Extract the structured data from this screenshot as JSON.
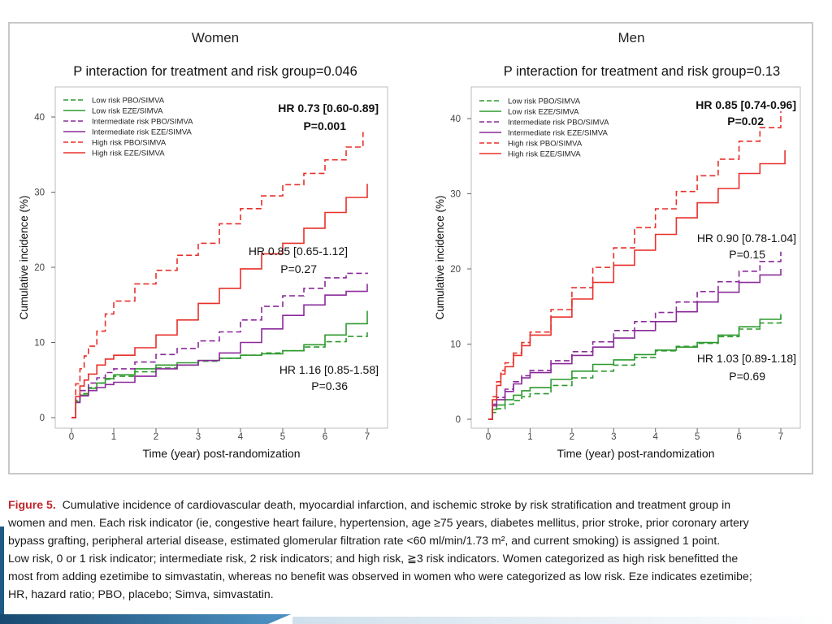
{
  "chart_data": [
    {
      "type": "line",
      "panel_title": "Women",
      "subtitle": "P interaction for treatment and risk group=0.046",
      "xlabel": "Time (year) post-randomization",
      "ylabel": "Cumulative incidence (%)",
      "xlim": [
        0,
        7.3
      ],
      "ylim": [
        0,
        45
      ],
      "x_ticks": [
        "0",
        "1",
        "2",
        "3",
        "4",
        "5",
        "6",
        "7"
      ],
      "y_ticks": [
        "0",
        "10",
        "20",
        "30",
        "40"
      ],
      "legend": [
        "Low risk PBO/SIMVA",
        "Low risk EZE/SIMVA",
        "Intermediate risk PBO/SIMVA",
        "Intermediate risk EZE/SIMVA",
        "High risk PBO/SIMVA",
        "High risk EZE/SIMVA"
      ],
      "annotations": [
        {
          "hr": "HR 0.73 [0.60-0.89]",
          "p": "P=0.001",
          "bold": true
        },
        {
          "hr": "HR 0.85 [0.65-1.12]",
          "p": "P=0.27",
          "bold": false
        },
        {
          "hr": "HR 1.16 [0.85-1.58]",
          "p": "P=0.36",
          "bold": false
        }
      ],
      "series": [
        {
          "name": "Low risk PBO/SIMVA",
          "color": "#2e9a2e",
          "dashed": true,
          "x": [
            0,
            0.1,
            0.2,
            0.4,
            0.6,
            0.8,
            1,
            1.5,
            2,
            2.5,
            3,
            3.5,
            4,
            4.5,
            5,
            5.5,
            6,
            6.5,
            7
          ],
          "y": [
            0,
            2.3,
            3.2,
            4.0,
            4.6,
            5.1,
            5.5,
            6.1,
            6.6,
            7.0,
            7.5,
            7.9,
            8.3,
            8.6,
            8.9,
            9.4,
            10.1,
            10.8,
            11.4
          ]
        },
        {
          "name": "Low risk EZE/SIMVA",
          "color": "#2e9a2e",
          "dashed": false,
          "x": [
            0,
            0.1,
            0.2,
            0.4,
            0.6,
            0.8,
            1,
            1.5,
            2,
            2.5,
            3,
            3.5,
            4,
            4.5,
            5,
            5.5,
            6,
            6.5,
            7
          ],
          "y": [
            0,
            2.1,
            3.0,
            3.9,
            4.6,
            5.2,
            5.7,
            6.5,
            7.0,
            7.3,
            7.6,
            7.9,
            8.3,
            8.5,
            8.9,
            9.7,
            11.0,
            12.5,
            14.2
          ]
        },
        {
          "name": "Intermediate risk PBO/SIMVA",
          "color": "#8a2a9a",
          "dashed": true,
          "x": [
            0,
            0.1,
            0.2,
            0.4,
            0.6,
            0.8,
            1,
            1.5,
            2,
            2.5,
            3,
            3.5,
            4,
            4.5,
            5,
            5.5,
            6,
            6.5,
            7
          ],
          "y": [
            0,
            2.5,
            3.6,
            4.6,
            5.3,
            6.0,
            6.5,
            7.4,
            8.4,
            9.2,
            10.2,
            11.4,
            13.0,
            14.8,
            16.2,
            17.2,
            18.6,
            19.2,
            19.3
          ]
        },
        {
          "name": "Intermediate risk EZE/SIMVA",
          "color": "#8a2a9a",
          "dashed": false,
          "x": [
            0,
            0.1,
            0.2,
            0.4,
            0.6,
            0.8,
            1,
            1.5,
            2,
            2.5,
            3,
            3.5,
            4,
            4.5,
            5,
            5.5,
            6,
            6.5,
            7
          ],
          "y": [
            0,
            2.0,
            2.9,
            3.6,
            4.0,
            4.4,
            4.7,
            5.5,
            6.5,
            7.0,
            7.6,
            8.6,
            10.0,
            11.8,
            13.6,
            15.0,
            16.3,
            16.8,
            17.8
          ]
        },
        {
          "name": "High risk PBO/SIMVA",
          "color": "#e8302a",
          "dashed": true,
          "x": [
            0,
            0.1,
            0.2,
            0.3,
            0.4,
            0.6,
            0.8,
            1,
            1.5,
            2,
            2.5,
            3,
            3.5,
            4,
            4.5,
            5,
            5.5,
            6,
            6.5,
            6.9
          ],
          "y": [
            0,
            4.5,
            6.5,
            8.2,
            9.5,
            11.5,
            13.8,
            15.5,
            17.8,
            19.6,
            21.6,
            23.2,
            25.8,
            27.8,
            29.5,
            31.0,
            32.5,
            34.3,
            36.0,
            38.0
          ]
        },
        {
          "name": "High risk EZE/SIMVA",
          "color": "#e8302a",
          "dashed": false,
          "x": [
            0,
            0.1,
            0.2,
            0.3,
            0.4,
            0.6,
            0.8,
            1,
            1.5,
            2,
            2.5,
            3,
            3.5,
            4,
            4.5,
            5,
            5.5,
            6,
            6.5,
            7
          ],
          "y": [
            0,
            2.8,
            4.2,
            5.0,
            5.8,
            7.0,
            7.8,
            8.3,
            9.3,
            11.0,
            13.0,
            15.2,
            17.2,
            19.8,
            21.8,
            23.2,
            25.2,
            27.3,
            29.3,
            31.1
          ]
        }
      ]
    },
    {
      "type": "line",
      "panel_title": "Men",
      "subtitle": "P interaction for treatment and risk group=0.13",
      "xlabel": "Time (year) post-randomization",
      "ylabel": "Cumulative incidence (%)",
      "xlim": [
        0,
        7.3
      ],
      "ylim": [
        0,
        45
      ],
      "x_ticks": [
        "0",
        "1",
        "2",
        "3",
        "4",
        "5",
        "6",
        "7"
      ],
      "y_ticks": [
        "0",
        "10",
        "20",
        "30",
        "40"
      ],
      "legend": [
        "Low risk PBO/SIMVA",
        "Low risk EZE/SIMVA",
        "Intermediate risk PBO/SIMVA",
        "Intermediate risk EZE/SIMVA",
        "High risk PBO/SIMVA",
        "High risk EZE/SIMVA"
      ],
      "annotations": [
        {
          "hr": "HR 0.85 [0.74-0.96]",
          "p": "P=0.02",
          "bold": true
        },
        {
          "hr": "HR 0.90 [0.78-1.04]",
          "p": "P=0.15",
          "bold": false
        },
        {
          "hr": "HR 1.03 [0.89-1.18]",
          "p": "P=0.69",
          "bold": false
        }
      ],
      "series": [
        {
          "name": "Low risk PBO/SIMVA",
          "color": "#2e9a2e",
          "dashed": true,
          "x": [
            0,
            0.1,
            0.2,
            0.4,
            0.6,
            0.8,
            1,
            1.5,
            2,
            2.5,
            3,
            3.5,
            4,
            4.5,
            5,
            5.5,
            6,
            6.5,
            7
          ],
          "y": [
            0,
            0.9,
            1.4,
            2.0,
            2.5,
            3.0,
            3.4,
            4.5,
            5.5,
            6.4,
            7.2,
            8.2,
            9.1,
            9.7,
            10.1,
            11.0,
            12.0,
            12.8,
            13.7
          ]
        },
        {
          "name": "Low risk EZE/SIMVA",
          "color": "#2e9a2e",
          "dashed": false,
          "x": [
            0,
            0.1,
            0.2,
            0.4,
            0.6,
            0.8,
            1,
            1.5,
            2,
            2.5,
            3,
            3.5,
            4,
            4.5,
            5,
            5.5,
            6,
            6.5,
            7
          ],
          "y": [
            0,
            1.3,
            1.9,
            2.6,
            3.2,
            3.8,
            4.2,
            5.3,
            6.4,
            7.3,
            7.9,
            8.6,
            9.2,
            9.6,
            10.2,
            11.2,
            12.3,
            13.3,
            14.0
          ]
        },
        {
          "name": "Intermediate risk PBO/SIMVA",
          "color": "#8a2a9a",
          "dashed": true,
          "x": [
            0,
            0.1,
            0.2,
            0.4,
            0.6,
            0.8,
            1,
            1.5,
            2,
            2.5,
            3,
            3.5,
            4,
            4.5,
            5,
            5.5,
            6,
            6.5,
            7
          ],
          "y": [
            0,
            2.0,
            2.9,
            4.0,
            5.0,
            5.8,
            6.5,
            7.8,
            9.0,
            10.3,
            11.8,
            13.0,
            14.2,
            15.6,
            17.0,
            18.3,
            19.7,
            21.0,
            22.3
          ]
        },
        {
          "name": "Intermediate risk EZE/SIMVA",
          "color": "#8a2a9a",
          "dashed": false,
          "x": [
            0,
            0.1,
            0.2,
            0.4,
            0.6,
            0.8,
            1,
            1.5,
            2,
            2.5,
            3,
            3.5,
            4,
            4.5,
            5,
            5.5,
            6,
            6.5,
            7
          ],
          "y": [
            0,
            1.8,
            2.6,
            3.7,
            4.7,
            5.5,
            6.2,
            7.4,
            8.5,
            9.6,
            10.8,
            11.8,
            13.0,
            14.3,
            15.6,
            16.9,
            18.2,
            19.2,
            20.0
          ]
        },
        {
          "name": "High risk PBO/SIMVA",
          "color": "#e8302a",
          "dashed": true,
          "x": [
            0,
            0.1,
            0.2,
            0.3,
            0.4,
            0.6,
            0.8,
            1,
            1.5,
            2,
            2.5,
            3,
            3.5,
            4,
            4.5,
            5,
            5.5,
            6,
            6.5,
            7
          ],
          "y": [
            0,
            3.0,
            5.0,
            6.5,
            7.5,
            8.8,
            10.2,
            11.6,
            14.6,
            17.5,
            20.2,
            22.8,
            25.5,
            28.0,
            30.3,
            32.4,
            34.6,
            37.0,
            38.8,
            41.0
          ]
        },
        {
          "name": "High risk EZE/SIMVA",
          "color": "#e8302a",
          "dashed": false,
          "x": [
            0,
            0.1,
            0.2,
            0.3,
            0.4,
            0.6,
            0.8,
            1,
            1.5,
            2,
            2.5,
            3,
            3.5,
            4,
            4.5,
            5,
            5.5,
            6,
            6.5,
            7.1
          ],
          "y": [
            0,
            2.6,
            4.5,
            6.0,
            7.0,
            8.5,
            9.8,
            11.2,
            13.6,
            16.0,
            18.2,
            20.5,
            22.5,
            24.6,
            26.8,
            28.8,
            30.7,
            32.7,
            34.0,
            35.8
          ]
        }
      ]
    }
  ],
  "caption": {
    "label": "Figure 5.",
    "line1": "Cumulative incidence of cardiovascular death, myocardial infarction, and ischemic stroke by risk stratification and treatment group in",
    "line2": "women and men. Each risk indicator (ie, congestive heart failure, hypertension, age ≥75  years, diabetes mellitus, prior stroke, prior coronary artery",
    "line3": "bypass grafting, peripheral arterial disease, estimated glomerular filtration rate <60  ml/min/1.73 m², and current smoking) is assigned 1 point.",
    "line4": "Low risk, 0 or 1 risk indicator; intermediate risk, 2 risk indicators; and high risk, ≧3 risk indicators. Women categorized as high risk benefitted the",
    "line5": "most from adding ezetimibe to simvastatin, whereas no benefit was observed in women who were categorized as low risk. Eze indicates ezetimibe;",
    "line6": "HR, hazard ratio; PBO, placebo; Simva, simvastatin."
  },
  "colors": {
    "caption_label": "#c0262d",
    "accent_bar": "#1f5a86"
  }
}
